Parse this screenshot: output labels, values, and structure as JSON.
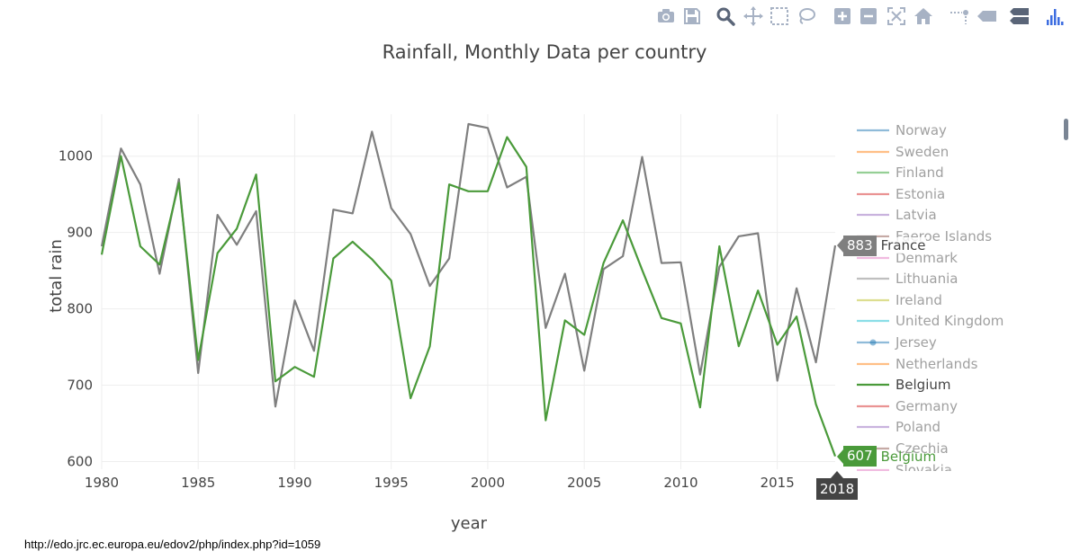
{
  "modebar": {
    "icons": [
      "camera-icon",
      "save-icon",
      "zoom-icon",
      "pan-icon",
      "box-select-icon",
      "lasso-select-icon",
      "zoom-in-icon",
      "zoom-out-icon",
      "autoscale-icon",
      "reset-axes-icon",
      "toggle-spike-lines-icon",
      "hover-closest-icon",
      "hover-compare-icon",
      "plotly-logo-icon"
    ]
  },
  "chart_data": {
    "type": "line",
    "title": "Rainfall, Monthly Data per country",
    "xlabel": "year",
    "ylabel": "total rain",
    "xlim": [
      1980,
      2018
    ],
    "ylim": [
      590,
      1055
    ],
    "x_ticks": [
      "1980",
      "1985",
      "1990",
      "1995",
      "2000",
      "2005",
      "2010",
      "2015"
    ],
    "y_ticks": [
      "600",
      "700",
      "800",
      "900",
      "1000"
    ],
    "grid": true,
    "legend_position": "right",
    "x": [
      1980,
      1981,
      1982,
      1983,
      1984,
      1985,
      1986,
      1987,
      1988,
      1989,
      1990,
      1991,
      1992,
      1993,
      1994,
      1995,
      1996,
      1997,
      1998,
      1999,
      2000,
      2001,
      2002,
      2003,
      2004,
      2005,
      2006,
      2007,
      2008,
      2009,
      2010,
      2011,
      2012,
      2013,
      2014,
      2015,
      2016,
      2017,
      2018
    ],
    "series": [
      {
        "name": "France",
        "color": "#7f7f7f",
        "values": [
          882,
          1010,
          963,
          846,
          970,
          716,
          923,
          884,
          928,
          672,
          811,
          745,
          930,
          925,
          1032,
          932,
          898,
          830,
          866,
          1042,
          1037,
          959,
          973,
          775,
          846,
          719,
          852,
          869,
          999,
          860,
          861,
          714,
          855,
          895,
          899,
          706,
          827,
          730,
          883
        ]
      },
      {
        "name": "Belgium",
        "color": "#4a9a3a",
        "values": [
          871,
          1000,
          882,
          858,
          965,
          733,
          873,
          905,
          976,
          705,
          724,
          711,
          866,
          888,
          865,
          837,
          683,
          751,
          963,
          954,
          954,
          1025,
          986,
          654,
          785,
          766,
          860,
          916,
          851,
          788,
          781,
          671,
          882,
          751,
          824,
          753,
          790,
          675,
          607
        ]
      }
    ],
    "legend": [
      {
        "name": "Norway",
        "color": "#1f77b4"
      },
      {
        "name": "Sweden",
        "color": "#ff7f0e"
      },
      {
        "name": "Finland",
        "color": "#2ca02c"
      },
      {
        "name": "Estonia",
        "color": "#d62728"
      },
      {
        "name": "Latvia",
        "color": "#9467bd"
      },
      {
        "name": "Faeroe Islands",
        "color": "#8c564b"
      },
      {
        "name": "Denmark",
        "color": "#e377c2"
      },
      {
        "name": "Lithuania",
        "color": "#7f7f7f"
      },
      {
        "name": "Ireland",
        "color": "#bcbd22"
      },
      {
        "name": "United Kingdom",
        "color": "#17becf"
      },
      {
        "name": "Jersey",
        "color": "#1f77b4"
      },
      {
        "name": "Netherlands",
        "color": "#ff7f0e"
      },
      {
        "name": "Belgium",
        "color": "#4a9a3a",
        "active": true
      },
      {
        "name": "Germany",
        "color": "#d62728"
      },
      {
        "name": "Poland",
        "color": "#9467bd"
      },
      {
        "name": "Czechia",
        "color": "#8c564b"
      },
      {
        "name": "Slovakia",
        "color": "#e377c2"
      }
    ],
    "hover": {
      "x": "2018",
      "labels": [
        {
          "series": "France",
          "value": "883",
          "color": "#7f7f7f"
        },
        {
          "series": "Belgium",
          "value": "607",
          "color": "#4a9a3a"
        }
      ]
    }
  },
  "source_url": "http://edo.jrc.ec.europa.eu/edov2/php/index.php?id=1059"
}
